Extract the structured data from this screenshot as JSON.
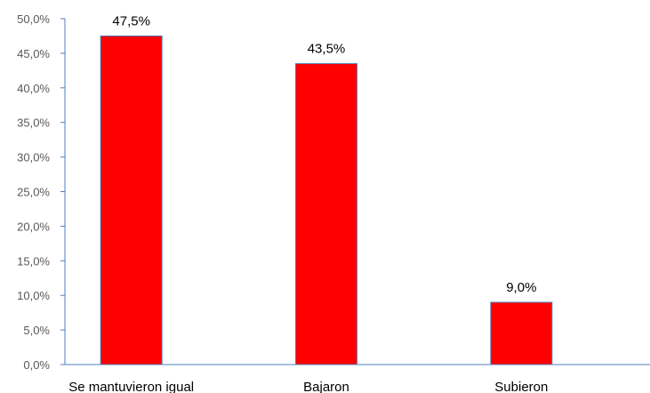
{
  "chart_data": {
    "type": "bar",
    "categories": [
      "Se mantuvieron igual",
      "Bajaron",
      "Subieron"
    ],
    "values": [
      47.5,
      43.5,
      9.0
    ],
    "data_labels": [
      "47,5%",
      "43,5%",
      "9,0%"
    ],
    "y_ticks": [
      "0,0%",
      "5,0%",
      "10,0%",
      "15,0%",
      "20,0%",
      "25,0%",
      "30,0%",
      "35,0%",
      "40,0%",
      "45,0%",
      "50,0%"
    ],
    "ylim": [
      0,
      50
    ],
    "y_step": 5,
    "grid": false,
    "title": "",
    "xlabel": "",
    "ylabel": ""
  },
  "colors": {
    "bar_fill": "#ff0000",
    "bar_stroke": "#4f81bd",
    "axis": "#4f81bd",
    "tick_text": "#595959",
    "label_text": "#000000"
  }
}
